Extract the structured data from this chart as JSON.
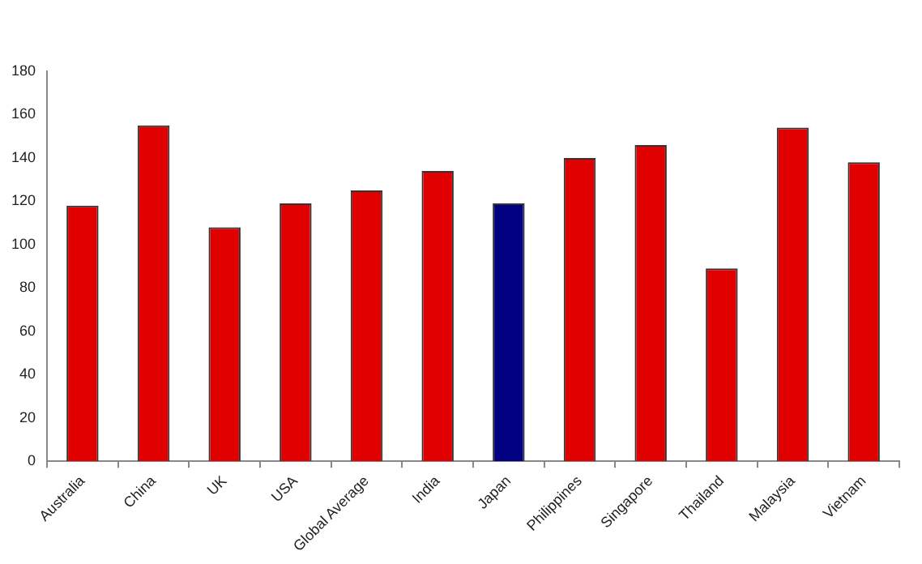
{
  "chart_data": {
    "type": "bar",
    "categories": [
      "Australia",
      "China",
      "UK",
      "USA",
      "Global Average",
      "India",
      "Japan",
      "Philippines",
      "Singapore",
      "Thailand",
      "Malaysia",
      "Vietnam"
    ],
    "values": [
      118,
      155,
      108,
      119,
      125,
      134,
      119,
      140,
      146,
      89,
      154,
      138
    ],
    "colors": [
      "#e00000",
      "#e00000",
      "#e00000",
      "#e00000",
      "#e00000",
      "#e00000",
      "#000080",
      "#e00000",
      "#e00000",
      "#e00000",
      "#e00000",
      "#e00000"
    ],
    "ylim": [
      0,
      180
    ],
    "yticks": [
      0,
      20,
      40,
      60,
      80,
      100,
      120,
      140,
      160,
      180
    ],
    "grid": false,
    "legend": false
  }
}
